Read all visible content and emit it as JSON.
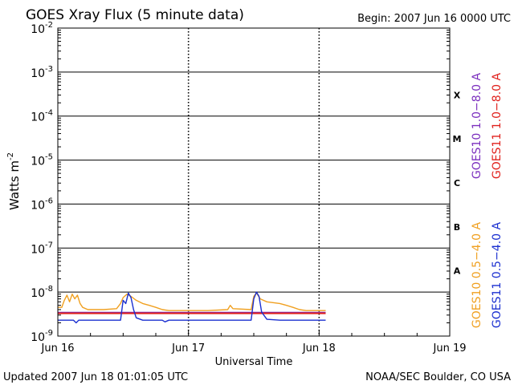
{
  "header": {
    "title": "GOES Xray Flux (5 minute data)",
    "begin": "Begin:  2007 Jun 16 0000 UTC"
  },
  "footer": {
    "updated": "Updated 2007 Jun 18 01:01:05 UTC",
    "credit": "NOAA/SEC Boulder, CO USA"
  },
  "chart_data": {
    "type": "line",
    "title": "GOES Xray Flux (5 minute data)",
    "xlabel": "Universal Time",
    "ylabel": "Watts m",
    "ylabel_sup": "-2",
    "x_tick_labels": [
      "Jun 16",
      "Jun 17",
      "Jun 18",
      "Jun 19"
    ],
    "xlim_days": [
      0,
      3
    ],
    "y_scale": "log",
    "ylim": [
      1e-09,
      0.01
    ],
    "y_ticks": [
      {
        "base": "10",
        "exp": "-2"
      },
      {
        "base": "10",
        "exp": "-3"
      },
      {
        "base": "10",
        "exp": "-4"
      },
      {
        "base": "10",
        "exp": "-5"
      },
      {
        "base": "10",
        "exp": "-6"
      },
      {
        "base": "10",
        "exp": "-7"
      },
      {
        "base": "10",
        "exp": "-8"
      },
      {
        "base": "10",
        "exp": "-9"
      }
    ],
    "flare_classes": [
      {
        "label": "X",
        "value": 0.000316
      },
      {
        "label": "M",
        "value": 3.16e-05
      },
      {
        "label": "C",
        "value": 3.16e-06
      },
      {
        "label": "B",
        "value": 3.16e-07
      },
      {
        "label": "A",
        "value": 3.16e-08
      }
    ],
    "class_lines": [
      0.001,
      0.0001,
      1e-05,
      1e-06,
      1e-07,
      1e-08
    ],
    "grid": "dashed vertical at day boundaries",
    "legend": [
      {
        "text": "GOES10 1.0−8.0 A",
        "color": "#7b2fbe"
      },
      {
        "text": "GOES11 1.0−8.0 A",
        "color": "#e0201c"
      },
      {
        "text": "GOES10 0.5−4.0 A",
        "color": "#f0a020"
      },
      {
        "text": "GOES11 0.5−4.0 A",
        "color": "#1a2fd0"
      }
    ],
    "series": [
      {
        "name": "GOES10 1.0−8.0 A",
        "color": "#7b2fbe",
        "points": [
          [
            0.0,
            3.4e-09
          ],
          [
            2.05,
            3.4e-09
          ]
        ]
      },
      {
        "name": "GOES11 1.0−8.0 A",
        "color": "#e0201c",
        "points": [
          [
            0.0,
            3.3e-09
          ],
          [
            2.05,
            3.3e-09
          ]
        ]
      },
      {
        "name": "GOES10 0.5−4.0 A",
        "color": "#f0a020",
        "points": [
          [
            0.0,
            4.5e-09
          ],
          [
            0.03,
            4.5e-09
          ],
          [
            0.05,
            6.5e-09
          ],
          [
            0.07,
            8.5e-09
          ],
          [
            0.09,
            6e-09
          ],
          [
            0.11,
            9e-09
          ],
          [
            0.13,
            7e-09
          ],
          [
            0.15,
            8.5e-09
          ],
          [
            0.17,
            5.5e-09
          ],
          [
            0.19,
            4.5e-09
          ],
          [
            0.23,
            4e-09
          ],
          [
            0.35,
            4e-09
          ],
          [
            0.45,
            4.2e-09
          ],
          [
            0.48,
            5.5e-09
          ],
          [
            0.5,
            7.5e-09
          ],
          [
            0.53,
            9e-09
          ],
          [
            0.56,
            8e-09
          ],
          [
            0.6,
            6.5e-09
          ],
          [
            0.65,
            5.5e-09
          ],
          [
            0.7,
            5e-09
          ],
          [
            0.75,
            4.5e-09
          ],
          [
            0.8,
            4e-09
          ],
          [
            0.85,
            3.8e-09
          ],
          [
            1.0,
            3.8e-09
          ],
          [
            1.15,
            3.8e-09
          ],
          [
            1.3,
            4e-09
          ],
          [
            1.32,
            5e-09
          ],
          [
            1.34,
            4.2e-09
          ],
          [
            1.48,
            4e-09
          ],
          [
            1.5,
            8e-09
          ],
          [
            1.52,
            9.5e-09
          ],
          [
            1.55,
            7e-09
          ],
          [
            1.6,
            6e-09
          ],
          [
            1.7,
            5.5e-09
          ],
          [
            1.75,
            5e-09
          ],
          [
            1.8,
            4.5e-09
          ],
          [
            1.85,
            4e-09
          ],
          [
            1.9,
            3.8e-09
          ],
          [
            2.05,
            3.8e-09
          ]
        ]
      },
      {
        "name": "GOES11 0.5−4.0 A",
        "color": "#1a2fd0",
        "points": [
          [
            0.0,
            2.3e-09
          ],
          [
            0.12,
            2.3e-09
          ],
          [
            0.14,
            2e-09
          ],
          [
            0.16,
            2.3e-09
          ],
          [
            0.48,
            2.3e-09
          ],
          [
            0.5,
            6.5e-09
          ],
          [
            0.52,
            5.5e-09
          ],
          [
            0.54,
            9.5e-09
          ],
          [
            0.56,
            7.5e-09
          ],
          [
            0.58,
            4e-09
          ],
          [
            0.6,
            2.6e-09
          ],
          [
            0.65,
            2.3e-09
          ],
          [
            0.8,
            2.3e-09
          ],
          [
            0.82,
            2.1e-09
          ],
          [
            0.85,
            2.3e-09
          ],
          [
            1.48,
            2.3e-09
          ],
          [
            1.5,
            7e-09
          ],
          [
            1.52,
            1e-08
          ],
          [
            1.54,
            8e-09
          ],
          [
            1.56,
            3.5e-09
          ],
          [
            1.6,
            2.4e-09
          ],
          [
            1.7,
            2.3e-09
          ],
          [
            2.05,
            2.3e-09
          ]
        ]
      }
    ]
  }
}
